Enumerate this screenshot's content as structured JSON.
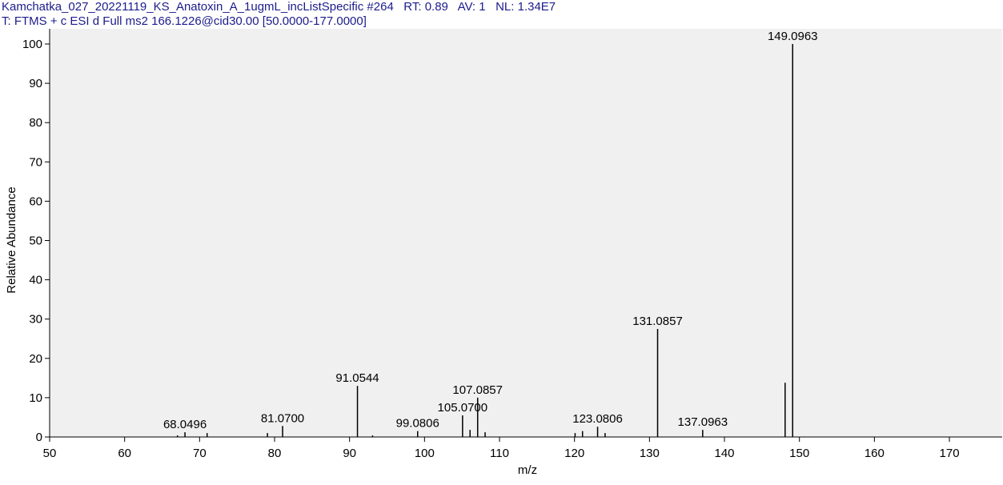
{
  "chart_data": {
    "type": "spectrum",
    "header": [
      "Kamchatka_027_20221119_KS_Anatoxin_A_1ugmL_incListSpecific #264   RT: 0.89   AV: 1   NL: 1.34E7",
      "T: FTMS + c ESI d Full ms2 166.1226@cid30.00 [50.0000-177.0000]"
    ],
    "xlabel": "m/z",
    "ylabel": "Relative Abundance",
    "x": [
      67.05,
      68.0496,
      71.0,
      79.05,
      81.07,
      91.0544,
      93.07,
      99.0806,
      105.07,
      106.07,
      107.0857,
      108.08,
      120.08,
      121.07,
      123.0806,
      124.08,
      131.0857,
      137.0963,
      148.09,
      149.0963
    ],
    "x_labels": [
      null,
      "68.0496",
      null,
      null,
      "81.0700",
      "91.0544",
      null,
      "99.0806",
      "105.0700",
      null,
      "107.0857",
      null,
      null,
      null,
      "123.0806",
      null,
      "131.0857",
      "137.0963",
      null,
      "149.0963"
    ],
    "values": [
      0.4,
      1.2,
      1.0,
      1.0,
      2.8,
      13.0,
      0.4,
      1.5,
      5.5,
      1.8,
      10.0,
      1.2,
      1.0,
      1.5,
      2.6,
      1.0,
      27.5,
      1.8,
      13.8,
      100
    ],
    "color": "#000000",
    "xlim": [
      50,
      177
    ],
    "ylim": [
      0,
      100
    ],
    "xticks": [
      50,
      60,
      70,
      80,
      90,
      100,
      110,
      120,
      130,
      140,
      150,
      160,
      170
    ],
    "yticks": [
      0,
      10,
      20,
      30,
      40,
      50,
      60,
      70,
      80,
      90,
      100
    ]
  }
}
